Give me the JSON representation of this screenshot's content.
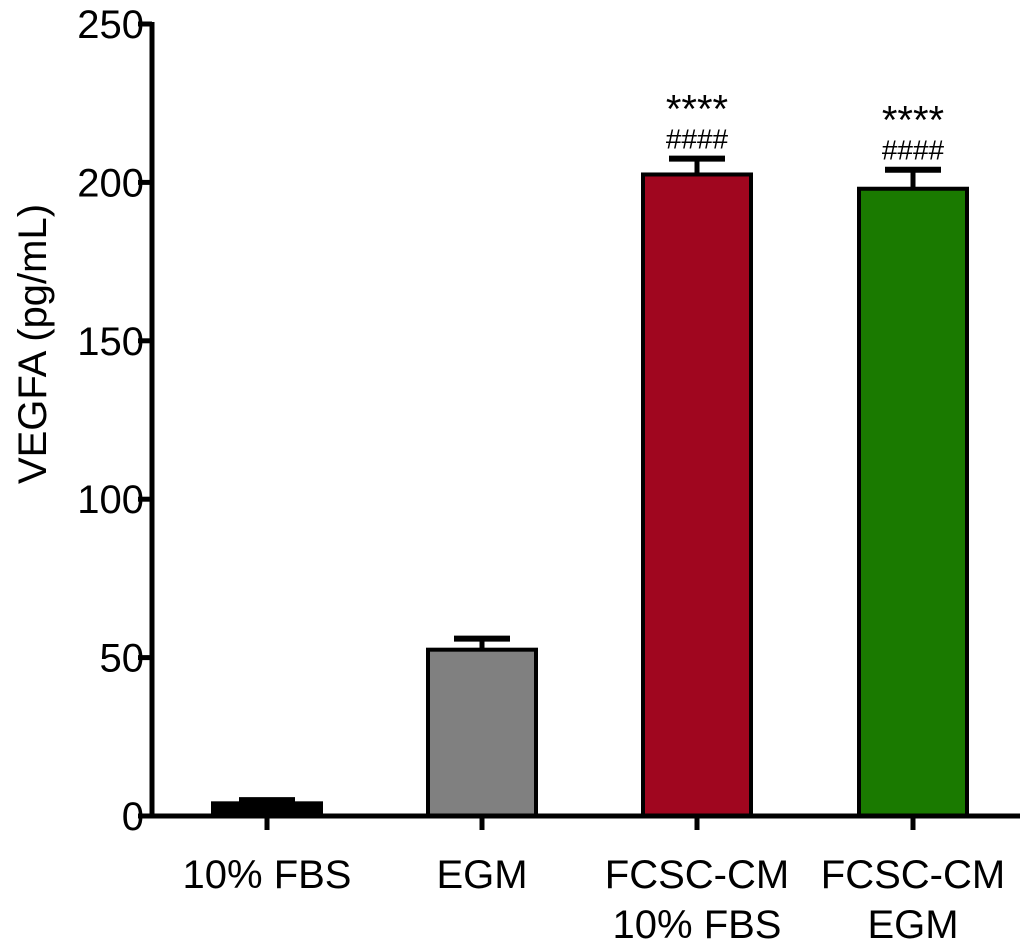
{
  "chart_data": {
    "type": "bar",
    "title": "",
    "xlabel": "",
    "ylabel": "VEGFA  (pg/mL)",
    "ylim": [
      0,
      250
    ],
    "yticks": [
      0,
      50,
      100,
      150,
      200,
      250
    ],
    "grid": false,
    "categories": [
      [
        "10% FBS"
      ],
      [
        "EGM"
      ],
      [
        "FCSC-CM",
        "10% FBS"
      ],
      [
        "FCSC-CM",
        "EGM"
      ]
    ],
    "values": [
      4,
      52.5,
      202.5,
      198
    ],
    "error": [
      1,
      3.5,
      5,
      6
    ],
    "colors": [
      "#000000",
      "#808080",
      "#a0061f",
      "#1a7a00"
    ],
    "annotations": [
      {
        "index": 2,
        "stars": "****",
        "hash": "####"
      },
      {
        "index": 3,
        "stars": "****",
        "hash": "####"
      }
    ]
  }
}
